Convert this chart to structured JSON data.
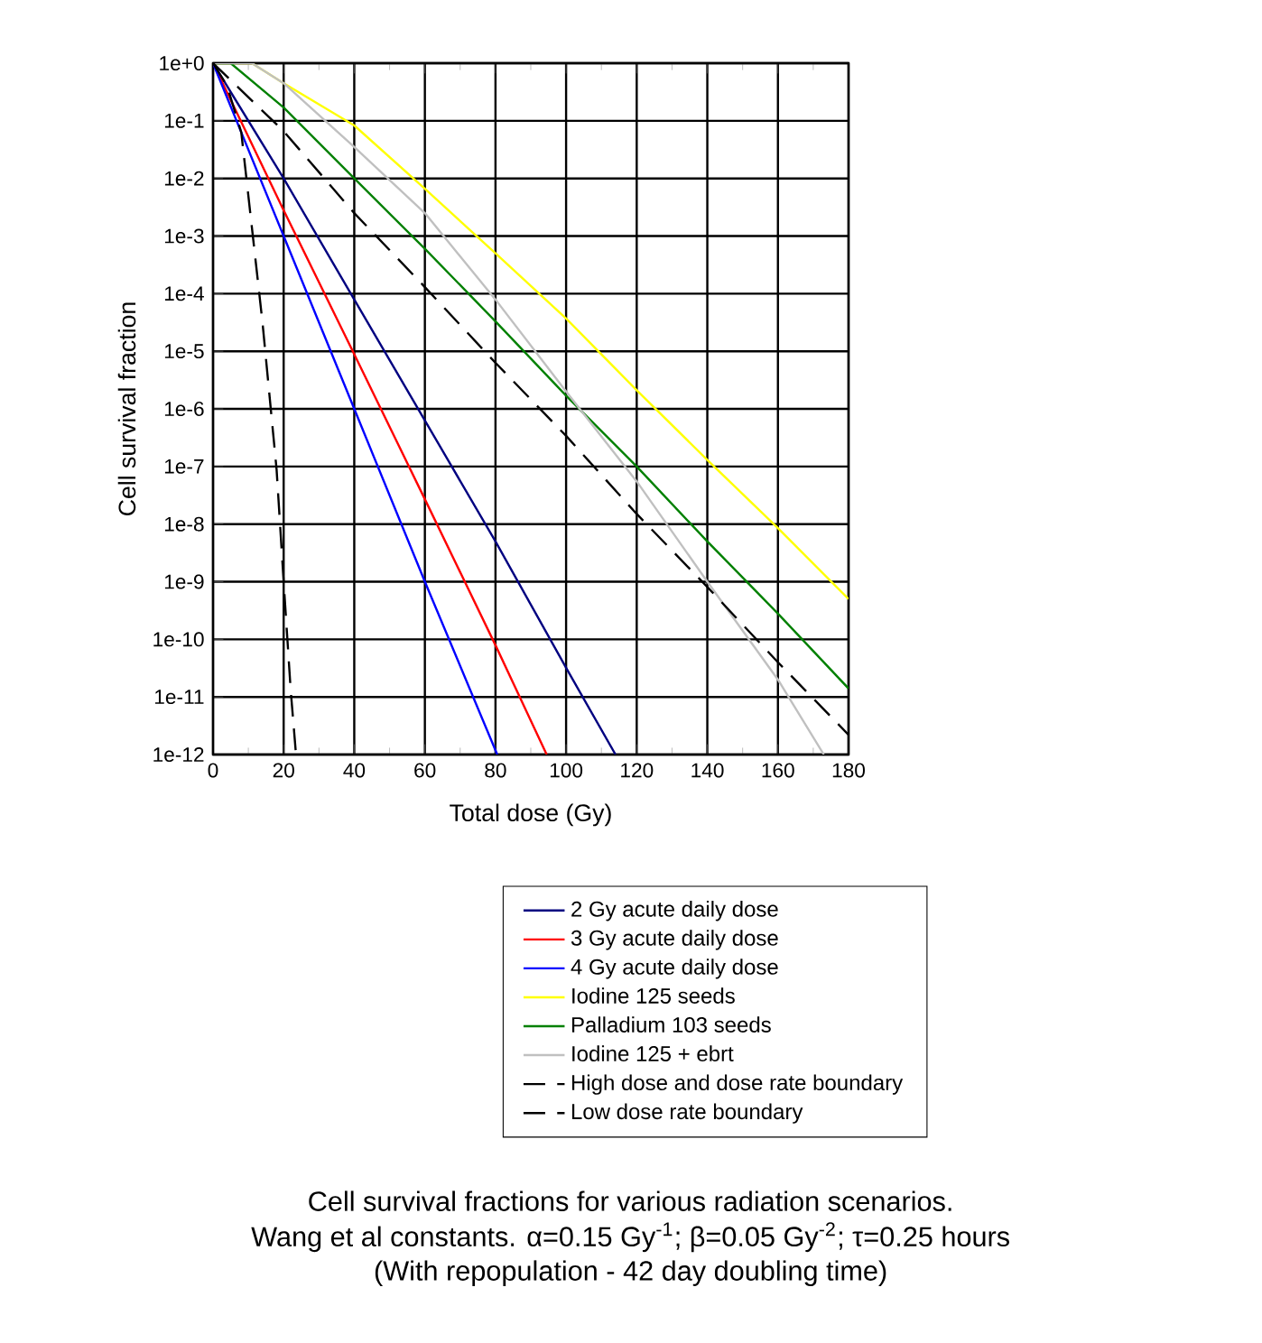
{
  "chart_data": {
    "type": "line",
    "title": "Cell survival fractions for various radiation scenarios.",
    "subtitle": "Wang et al constants. α=0.15 Gy$^{-1}$; β=0.05 Gy$^{-2}$; τ=0.25 hours",
    "annotations": [
      "(With repopulation - 42 day doubling time)"
    ],
    "xlabel": "Total dose (Gy)",
    "ylabel": "Cell survival fraction",
    "log": "y",
    "grid": true,
    "legend": "bottom",
    "marker": "none",
    "xlim": [
      0,
      180
    ],
    "xticks": [
      0,
      20,
      40,
      60,
      80,
      100,
      120,
      140,
      160,
      180
    ],
    "ylim": [
      1e-12,
      1
    ],
    "yticks": [
      {
        "value": 1,
        "label": "1e+0"
      },
      {
        "value": 0.1,
        "label": "1e-1"
      },
      {
        "value": 0.01,
        "label": "1e-2"
      },
      {
        "value": 0.001,
        "label": "1e-3"
      },
      {
        "value": 0.0001,
        "label": "1e-4"
      },
      {
        "value": 1e-05,
        "label": "1e-5"
      },
      {
        "value": 1e-06,
        "label": "1e-6"
      },
      {
        "value": 1e-07,
        "label": "1e-7"
      },
      {
        "value": 1e-08,
        "label": "1e-8"
      },
      {
        "value": 1e-09,
        "label": "1e-9"
      },
      {
        "value": 1e-10,
        "label": "1e-10"
      },
      {
        "value": 1e-11,
        "label": "1e-11"
      },
      {
        "value": 1e-12,
        "label": "1e-12"
      }
    ],
    "series": [
      {
        "name": "2 Gy acute daily dose",
        "color": "#000080",
        "line_style": "solid",
        "x": [
          0,
          20,
          40,
          60,
          80,
          100,
          114
        ],
        "values": [
          1,
          0.01,
          7.9e-05,
          6.3e-07,
          5e-09,
          3.2e-11,
          1e-12
        ]
      },
      {
        "name": "3 Gy acute daily dose",
        "color": "#ff0000",
        "line_style": "solid",
        "x": [
          0,
          20,
          40,
          60,
          80,
          94.5
        ],
        "values": [
          1,
          0.0028,
          8.9e-06,
          2.7e-08,
          7.9e-11,
          1e-12
        ]
      },
      {
        "name": "4 Gy acute daily dose",
        "color": "#0000ff",
        "line_style": "solid",
        "x": [
          0,
          20,
          40,
          60,
          80.5
        ],
        "values": [
          1,
          0.001,
          1e-06,
          1e-09,
          1e-12
        ]
      },
      {
        "name": "Iodine 125 seeds",
        "color": "#ffff00",
        "line_style": "solid",
        "x": [
          0,
          11,
          20,
          40,
          60,
          80,
          100,
          120,
          140,
          160,
          180
        ],
        "values": [
          1,
          1,
          0.45,
          0.083,
          0.0066,
          0.0005,
          3.7e-05,
          2.1e-06,
          1.3e-07,
          8.5e-09,
          5e-10
        ]
      },
      {
        "name": "Palladium 103 seeds",
        "color": "#008000",
        "line_style": "solid",
        "x": [
          0,
          5,
          20,
          40,
          60,
          80,
          100,
          120,
          140,
          160,
          180
        ],
        "values": [
          1,
          1,
          0.17,
          0.01,
          0.0006,
          3.3e-05,
          1.7e-06,
          1e-07,
          5e-09,
          2.8e-10,
          1.4e-11
        ]
      },
      {
        "name": "Iodine 125 + ebrt",
        "color": "#c0c0c0",
        "line_style": "solid",
        "x": [
          0,
          11,
          20,
          40,
          60,
          80,
          100,
          120,
          140,
          160,
          173
        ],
        "values": [
          1,
          1,
          0.45,
          0.035,
          0.0025,
          7.9e-05,
          2e-06,
          5.5e-08,
          1e-09,
          2e-11,
          1e-12
        ]
      },
      {
        "name": "High dose and dose rate boundary",
        "color": "#000000",
        "line_style": "dashed",
        "x": [
          0,
          4,
          8,
          14,
          18,
          20,
          22,
          23.5
        ],
        "values": [
          1,
          0.4,
          0.063,
          3.2e-05,
          8.9e-08,
          1e-09,
          1.3e-11,
          1e-12
        ]
      },
      {
        "name": "Low dose rate boundary",
        "color": "#000000",
        "line_style": "dashed",
        "x": [
          0,
          20,
          40,
          60,
          80,
          100,
          120,
          140,
          160,
          180
        ],
        "values": [
          1,
          0.066,
          0.0025,
          0.00013,
          6.3e-06,
          3.4e-07,
          1.5e-08,
          8.1e-10,
          4e-11,
          2.2e-12
        ]
      }
    ]
  }
}
